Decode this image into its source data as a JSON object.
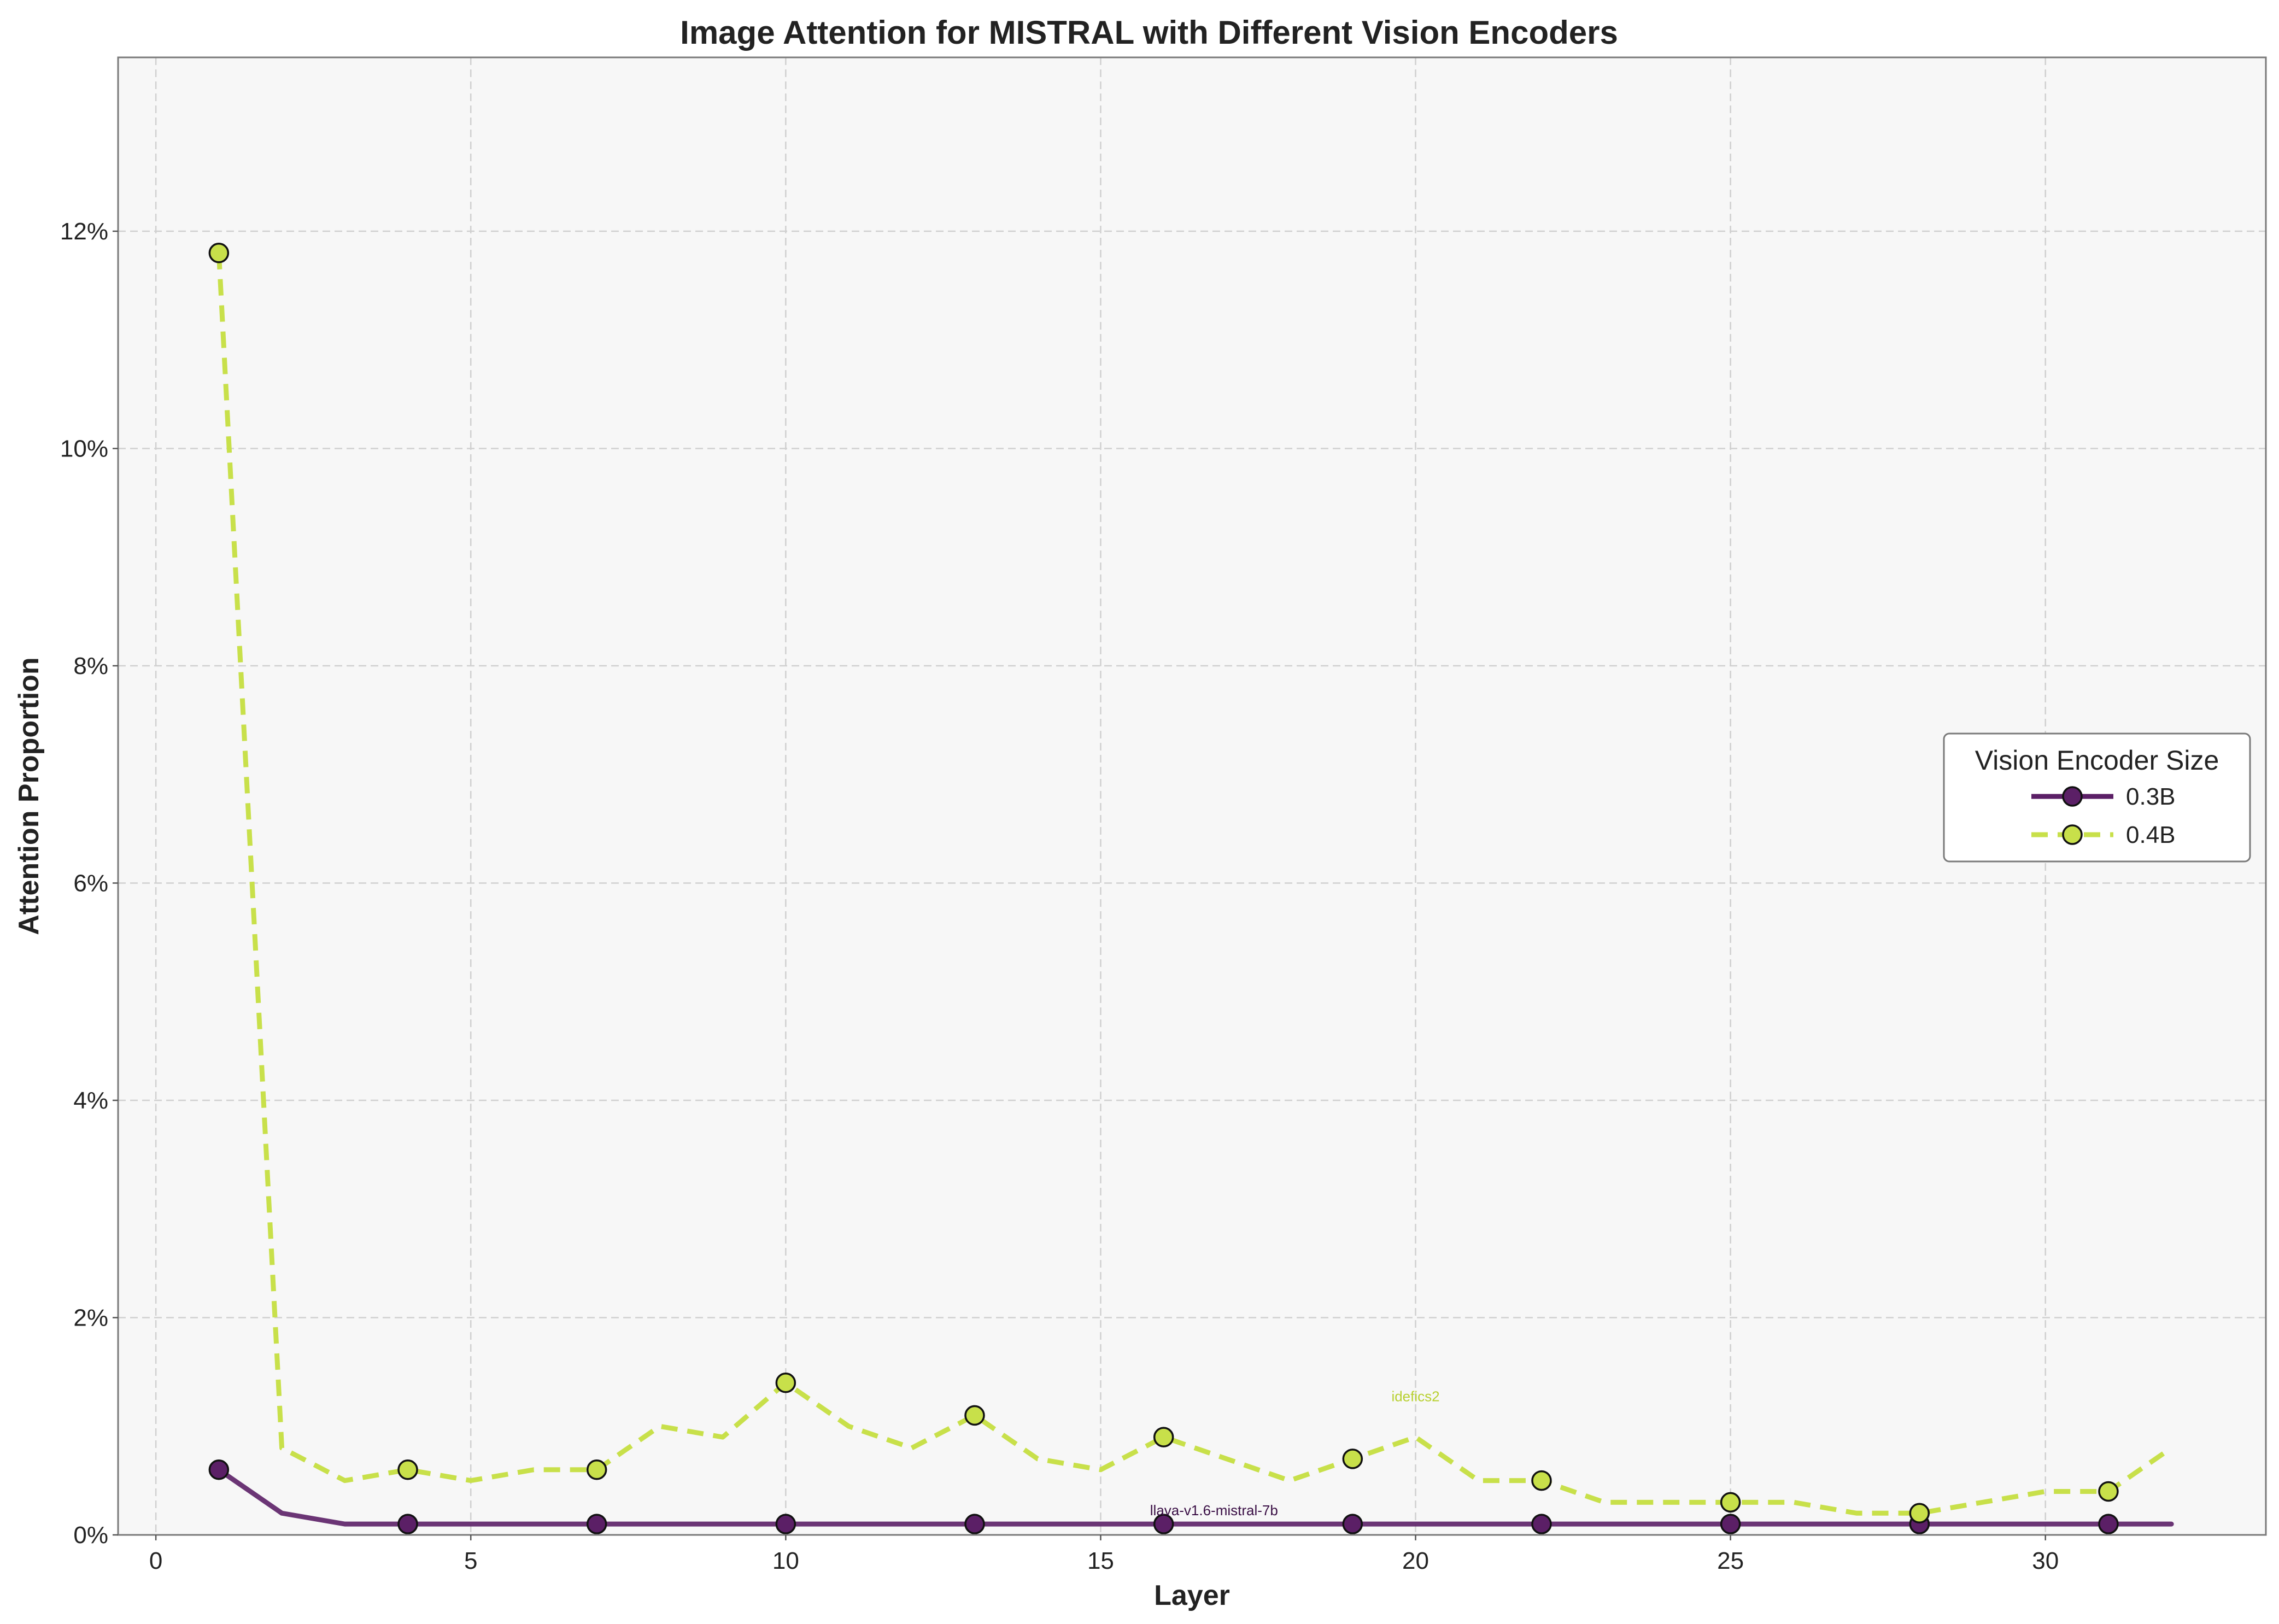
{
  "chart_data": {
    "type": "line",
    "title": "Image Attention for MISTRAL with Different Vision Encoders",
    "xlabel": "Layer",
    "ylabel": "Attention Proportion",
    "xlim": [
      -0.6,
      33.5
    ],
    "ylim": [
      0,
      13.6
    ],
    "xticks": [
      0,
      5,
      10,
      15,
      20,
      25,
      30
    ],
    "yticks": [
      0,
      2,
      4,
      6,
      8,
      10,
      12
    ],
    "ytick_labels": [
      "0%",
      "2%",
      "4%",
      "6%",
      "8%",
      "10%",
      "12%"
    ],
    "grid": true,
    "legend": {
      "title": "Vision Encoder Size",
      "placement": "right"
    },
    "series": [
      {
        "name": "0.3B",
        "color": "#5b1f66",
        "line_style": "solid",
        "x": [
          1,
          2,
          3,
          4,
          5,
          6,
          7,
          8,
          9,
          10,
          11,
          12,
          13,
          14,
          15,
          16,
          17,
          18,
          19,
          20,
          21,
          22,
          23,
          24,
          25,
          26,
          27,
          28,
          29,
          30,
          31,
          32
        ],
        "values": [
          0.6,
          0.2,
          0.1,
          0.1,
          0.1,
          0.1,
          0.1,
          0.1,
          0.1,
          0.1,
          0.1,
          0.1,
          0.1,
          0.1,
          0.1,
          0.1,
          0.1,
          0.1,
          0.1,
          0.1,
          0.1,
          0.1,
          0.1,
          0.1,
          0.1,
          0.1,
          0.1,
          0.1,
          0.1,
          0.1,
          0.1,
          0.1
        ],
        "marker_x": [
          1,
          4,
          7,
          10,
          13,
          16,
          19,
          22,
          25,
          28,
          31
        ],
        "annotation": {
          "text": "llava-v1.6-mistral-7b",
          "x": 16.8,
          "y": 0.15
        }
      },
      {
        "name": "0.4B",
        "color": "#c8e04a",
        "line_style": "dashed",
        "x": [
          1,
          2,
          3,
          4,
          5,
          6,
          7,
          8,
          9,
          10,
          11,
          12,
          13,
          14,
          15,
          16,
          17,
          18,
          19,
          20,
          21,
          22,
          23,
          24,
          25,
          26,
          27,
          28,
          29,
          30,
          31,
          32
        ],
        "values": [
          11.8,
          0.8,
          0.5,
          0.6,
          0.5,
          0.6,
          0.6,
          1.0,
          0.9,
          1.4,
          1.0,
          0.8,
          1.1,
          0.7,
          0.6,
          0.9,
          0.7,
          0.5,
          0.7,
          0.9,
          0.5,
          0.5,
          0.3,
          0.3,
          0.3,
          0.3,
          0.2,
          0.2,
          0.3,
          0.4,
          0.4,
          0.8
        ],
        "marker_x": [
          1,
          4,
          7,
          10,
          13,
          16,
          19,
          22,
          25,
          28,
          31
        ],
        "annotation": {
          "text": "idefics2",
          "x": 20.0,
          "y": 1.2
        }
      }
    ]
  }
}
